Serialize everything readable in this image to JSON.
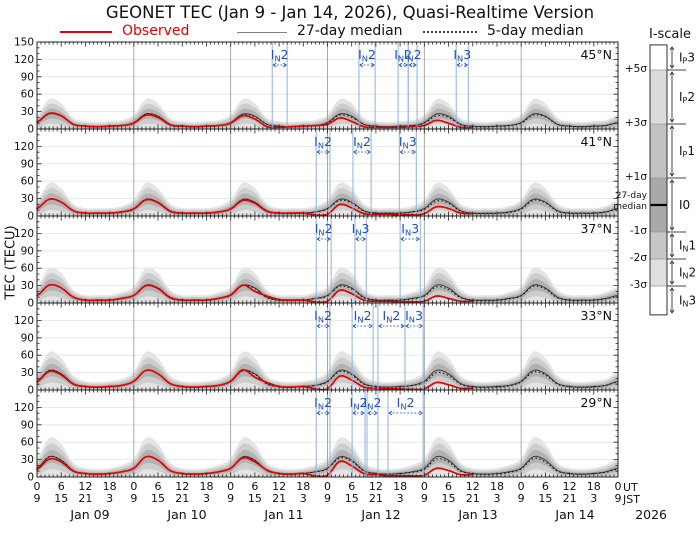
{
  "title": "GEONET TEC (Jan 9 - Jan 14, 2026), Quasi-Realtime Version",
  "legend": {
    "items": [
      {
        "label": "Observed",
        "color": "#e60000",
        "style": "solid"
      },
      {
        "label": "27-day median",
        "color": "#808080",
        "style": "solid"
      },
      {
        "label": "5-day median",
        "color": "#333333",
        "style": "dotted"
      }
    ]
  },
  "axes": {
    "ylabel": "TEC (TECU)",
    "x_unit_top": "UT",
    "x_unit_bottom": "JST"
  },
  "iscale": {
    "title": "I-scale",
    "median_label": [
      "27-day",
      "median"
    ],
    "sigma_ticks": [
      {
        "text": "+5σ",
        "sigma": 5
      },
      {
        "text": "+3σ",
        "sigma": 3
      },
      {
        "text": "+1σ",
        "sigma": 1
      },
      {
        "text": "-1σ",
        "sigma": -1
      },
      {
        "text": "-2σ",
        "sigma": -2
      },
      {
        "text": "-3σ",
        "sigma": -3
      }
    ],
    "zones": [
      {
        "label": "IP3",
        "sigma_from": 5,
        "sigma_to": 5.93,
        "color": "#ffffff"
      },
      {
        "label": "IP2",
        "sigma_from": 3,
        "sigma_to": 5,
        "color": "#dcdcdc"
      },
      {
        "label": "IP1",
        "sigma_from": 1,
        "sigma_to": 3,
        "color": "#c2c2c2"
      },
      {
        "label": "I0",
        "sigma_from": -1,
        "sigma_to": 1,
        "color": "#a9a9a9"
      },
      {
        "label": "IN1",
        "sigma_from": -2,
        "sigma_to": -1,
        "color": "#c6c6c6"
      },
      {
        "label": "IN2",
        "sigma_from": -3,
        "sigma_to": -2,
        "color": "#dfdfdf"
      },
      {
        "label": "IN3",
        "sigma_from": -4.07,
        "sigma_to": -3,
        "color": "#ffffff"
      }
    ]
  },
  "chart_data": {
    "type": "line",
    "title": "GEONET TEC (Jan 9 - Jan 14, 2026), Quasi-Realtime Version",
    "ylabel": "TEC (TECU)",
    "ylim": [
      0,
      150
    ],
    "yticks": [
      0,
      30,
      60,
      90,
      120,
      150
    ],
    "x_hours_range": [
      0,
      144
    ],
    "hours_step": 3,
    "xticks_ut": [
      0,
      6,
      12,
      18
    ],
    "xticks_jst": [
      9,
      15,
      21,
      3
    ],
    "final_ut": "0",
    "final_jst": "9",
    "days": [
      "Jan 09",
      "Jan 10",
      "Jan 11",
      "Jan 12",
      "Jan 13",
      "Jan 14"
    ],
    "year": "2026",
    "band_sigma": {
      "base": 1.5,
      "frac": 0.27
    },
    "styles": {
      "observed": "#e60000",
      "median27": "#3c3c3c",
      "median5": "#101010",
      "bands": [
        "#e4e4e4",
        "#cdcdcd",
        "#b2b2b2"
      ],
      "grid": "#e3e3e3",
      "dayline": "#9f9f9f",
      "annotation_line": "#8fb2e0",
      "annotation_text": "#1d4fc0",
      "border": "#222222"
    },
    "panels": [
      {
        "lat": "45°N",
        "median27": [
          11,
          26,
          22,
          8,
          5,
          4,
          5,
          6,
          11,
          26,
          22,
          8,
          5,
          4,
          5,
          6,
          11,
          26,
          22,
          8,
          5,
          4,
          5,
          6,
          11,
          26,
          22,
          8,
          5,
          4,
          5,
          6,
          11,
          26,
          22,
          8,
          5,
          4,
          5,
          6,
          11,
          26,
          22,
          8,
          5,
          4,
          5,
          6,
          11
        ],
        "median5": [
          11,
          27,
          22,
          8,
          5,
          4,
          5,
          6,
          11,
          26,
          22,
          8,
          5,
          4,
          5,
          6,
          11,
          25,
          21,
          8,
          5,
          4,
          5,
          6,
          10,
          24,
          20,
          8,
          5,
          4,
          5,
          6,
          10,
          23,
          20,
          7,
          4,
          4,
          5,
          6,
          10,
          24,
          21,
          8,
          5,
          4,
          5,
          6,
          11
        ],
        "observed": [
          12,
          27,
          23,
          8,
          5,
          4,
          5,
          6,
          10,
          24,
          20,
          7,
          5,
          4,
          5,
          6,
          10,
          23,
          17,
          4,
          3,
          4,
          5,
          6,
          8,
          19,
          13,
          4,
          3,
          3,
          3,
          4,
          6,
          15,
          10,
          3,
          3,
          null,
          null,
          null,
          null,
          null,
          null,
          null,
          null,
          null,
          null,
          null,
          null
        ],
        "annotations": [
          {
            "label": "IN2",
            "from_h": 58.3,
            "to_h": 62.0
          },
          {
            "label": "IN2",
            "from_h": 79.8,
            "to_h": 83.8
          },
          {
            "label": "IN2",
            "from_h": 89.5,
            "to_h": 92.0
          },
          {
            "label": "IN2",
            "from_h": 92.0,
            "to_h": 94.2
          },
          {
            "label": "IN3",
            "from_h": 103.9,
            "to_h": 106.9
          }
        ]
      },
      {
        "lat": "41°N",
        "median27": [
          13,
          29,
          24,
          9,
          5,
          5,
          5,
          7,
          13,
          29,
          24,
          9,
          5,
          5,
          5,
          7,
          13,
          29,
          24,
          9,
          5,
          5,
          5,
          7,
          13,
          29,
          24,
          9,
          5,
          5,
          5,
          7,
          13,
          29,
          24,
          9,
          5,
          5,
          5,
          7,
          13,
          29,
          24,
          9,
          5,
          5,
          5,
          7,
          13
        ],
        "median5": [
          13,
          29,
          24,
          9,
          5,
          5,
          5,
          7,
          13,
          29,
          24,
          9,
          5,
          5,
          5,
          7,
          12,
          28,
          23,
          9,
          5,
          5,
          5,
          7,
          12,
          27,
          22,
          8,
          5,
          5,
          5,
          7,
          11,
          26,
          22,
          8,
          5,
          4,
          5,
          6,
          12,
          27,
          23,
          8,
          5,
          5,
          5,
          7,
          12
        ],
        "observed": [
          13,
          29,
          24,
          9,
          5,
          5,
          5,
          7,
          12,
          28,
          23,
          8,
          5,
          5,
          5,
          7,
          12,
          27,
          22,
          8,
          5,
          5,
          5,
          2,
          3,
          20,
          14,
          4,
          3,
          3,
          2,
          2,
          4,
          16,
          13,
          5,
          4,
          null,
          null,
          null,
          null,
          null,
          null,
          null,
          null,
          null,
          null,
          null,
          null
        ],
        "annotations": [
          {
            "label": "IN2",
            "from_h": 69.2,
            "to_h": 72.6
          },
          {
            "label": "IN2",
            "from_h": 78.3,
            "to_h": 82.8
          },
          {
            "label": "IN3",
            "from_h": 89.8,
            "to_h": 94.0
          }
        ]
      },
      {
        "lat": "37°N",
        "median27": [
          13,
          31,
          26,
          10,
          5,
          5,
          5,
          8,
          13,
          31,
          26,
          10,
          5,
          5,
          5,
          8,
          13,
          31,
          26,
          10,
          5,
          5,
          5,
          8,
          13,
          31,
          26,
          10,
          5,
          5,
          5,
          8,
          13,
          31,
          26,
          10,
          5,
          5,
          5,
          8,
          13,
          31,
          26,
          10,
          5,
          5,
          5,
          8,
          13
        ],
        "median5": [
          13,
          31,
          26,
          10,
          5,
          5,
          5,
          8,
          13,
          31,
          26,
          10,
          5,
          5,
          5,
          8,
          13,
          30,
          25,
          9,
          5,
          5,
          5,
          8,
          12,
          29,
          24,
          9,
          5,
          5,
          5,
          7,
          12,
          28,
          23,
          9,
          5,
          4,
          5,
          7,
          12,
          29,
          24,
          9,
          5,
          5,
          5,
          7,
          12
        ],
        "observed": [
          13,
          31,
          26,
          10,
          5,
          5,
          5,
          8,
          13,
          30,
          25,
          9,
          5,
          5,
          5,
          8,
          14,
          31,
          20,
          12,
          6,
          5,
          5,
          2,
          3,
          22,
          16,
          5,
          3,
          3,
          2,
          2,
          3,
          12,
          8,
          3,
          3,
          null,
          null,
          null,
          null,
          null,
          null,
          null,
          null,
          null,
          null,
          null,
          null
        ],
        "annotations": [
          {
            "label": "IN2",
            "from_h": 69.2,
            "to_h": 72.9
          },
          {
            "label": "IN3",
            "from_h": 78.8,
            "to_h": 81.6
          },
          {
            "label": "IN3",
            "from_h": 90.0,
            "to_h": 95.0
          }
        ]
      },
      {
        "lat": "33°N",
        "median27": [
          15,
          34,
          28,
          11,
          6,
          5,
          6,
          8,
          15,
          34,
          28,
          11,
          6,
          5,
          6,
          8,
          15,
          34,
          28,
          11,
          6,
          5,
          6,
          8,
          15,
          34,
          28,
          11,
          6,
          5,
          6,
          8,
          15,
          34,
          28,
          11,
          6,
          5,
          6,
          8,
          15,
          34,
          28,
          11,
          6,
          5,
          6,
          8,
          15
        ],
        "median5": [
          15,
          34,
          28,
          11,
          6,
          5,
          6,
          8,
          15,
          34,
          28,
          11,
          6,
          5,
          6,
          8,
          14,
          33,
          27,
          10,
          6,
          5,
          6,
          8,
          14,
          32,
          26,
          10,
          6,
          5,
          5,
          8,
          13,
          30,
          25,
          10,
          5,
          5,
          5,
          7,
          14,
          31,
          26,
          10,
          6,
          5,
          5,
          8,
          14
        ],
        "observed": [
          14,
          32,
          26,
          10,
          6,
          5,
          6,
          8,
          15,
          34,
          28,
          11,
          6,
          5,
          6,
          8,
          15,
          35,
          22,
          13,
          6,
          5,
          6,
          2,
          2,
          24,
          17,
          5,
          3,
          2,
          2,
          1,
          2,
          13,
          9,
          3,
          3,
          null,
          null,
          null,
          null,
          null,
          null,
          null,
          null,
          null,
          null,
          null,
          null
        ],
        "annotations": [
          {
            "label": "IN2",
            "from_h": 69.2,
            "to_h": 72.6
          },
          {
            "label": "IN2",
            "from_h": 78.1,
            "to_h": 83.3
          },
          {
            "label": "IN2",
            "from_h": 84.5,
            "to_h": 91.2
          },
          {
            "label": "IN3",
            "from_h": 91.2,
            "to_h": 95.7
          }
        ]
      },
      {
        "lat": "29°N",
        "median27": [
          15,
          35,
          29,
          11,
          6,
          5,
          6,
          9,
          15,
          35,
          29,
          11,
          6,
          5,
          6,
          9,
          15,
          35,
          29,
          11,
          6,
          5,
          6,
          9,
          15,
          35,
          29,
          11,
          6,
          5,
          6,
          9,
          15,
          35,
          29,
          11,
          6,
          5,
          6,
          9,
          15,
          35,
          29,
          11,
          6,
          5,
          6,
          9,
          15
        ],
        "median5": [
          15,
          35,
          29,
          11,
          6,
          5,
          6,
          9,
          15,
          35,
          29,
          11,
          6,
          5,
          6,
          9,
          15,
          34,
          28,
          11,
          6,
          5,
          6,
          9,
          14,
          33,
          27,
          10,
          6,
          5,
          6,
          8,
          13,
          31,
          26,
          10,
          6,
          5,
          5,
          8,
          14,
          32,
          26,
          10,
          6,
          5,
          6,
          8,
          14
        ],
        "observed": [
          13,
          31,
          26,
          10,
          6,
          5,
          6,
          9,
          15,
          35,
          29,
          11,
          6,
          5,
          6,
          9,
          15,
          33,
          26,
          12,
          6,
          5,
          6,
          2,
          3,
          27,
          19,
          6,
          4,
          2,
          2,
          2,
          3,
          15,
          11,
          4,
          4,
          null,
          null,
          null,
          null,
          null,
          null,
          null,
          null,
          null,
          null,
          null,
          null
        ],
        "annotations": [
          {
            "label": "IN2",
            "from_h": 69.2,
            "to_h": 72.6
          },
          {
            "label": "IN2",
            "from_h": 78.1,
            "to_h": 81.3
          },
          {
            "label": "IN2",
            "from_h": 81.8,
            "to_h": 84.5
          },
          {
            "label": "IN2",
            "from_h": 87.0,
            "to_h": 95.7
          }
        ]
      }
    ]
  }
}
